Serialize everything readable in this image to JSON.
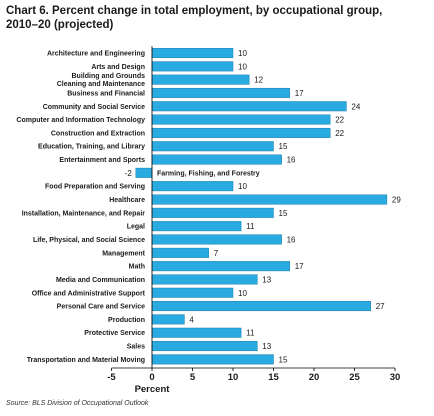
{
  "title_line1": "Chart 6. Percent change in total employment, by occupational group,",
  "title_line2": "2010–20 (projected)",
  "source": "Source: BLS Division of Occupational Outlook",
  "colors": {
    "bar": "#29abe2",
    "bar_stroke": "#1b7fb0",
    "text": "#1a1a1a",
    "axis": "#000000"
  },
  "chart_data": {
    "type": "bar",
    "orientation": "horizontal",
    "title": "Chart 6. Percent change in total employment, by occupational group, 2010–20 (projected)",
    "xlabel": "Percent",
    "ylabel": "",
    "xlim": [
      -5,
      30
    ],
    "xticks": [
      -5,
      0,
      5,
      10,
      15,
      20,
      25,
      30
    ],
    "grid": false,
    "categories": [
      "Architecture and Engineering",
      "Arts and Design",
      "Building and Grounds Cleaning and Maintenance",
      "Business and Financial",
      "Community and Social Service",
      "Computer and Information Technology",
      "Construction and Extraction",
      "Education, Training, and Library",
      "Entertainment and Sports",
      "Farming, Fishing, and Forestry",
      "Food Preparation and Serving",
      "Healthcare",
      "Installation, Maintenance, and Repair",
      "Legal",
      "Life, Physical, and Social Science",
      "Management",
      "Math",
      "Media and Communication",
      "Office and Administrative Support",
      "Personal Care and Service",
      "Production",
      "Protective Service",
      "Sales",
      "Transportation and Material Moving"
    ],
    "category_lines": [
      [
        "Architecture and Engineering"
      ],
      [
        "Arts and Design"
      ],
      [
        "Building and Grounds",
        "Cleaning and Maintenance"
      ],
      [
        "Business and Financial"
      ],
      [
        "Community and Social Service"
      ],
      [
        "Computer and Information Technology"
      ],
      [
        "Construction and Extraction"
      ],
      [
        "Education, Training, and Library"
      ],
      [
        "Entertainment and Sports"
      ],
      [],
      [
        "Food Preparation and Serving"
      ],
      [
        "Healthcare"
      ],
      [
        "Installation, Maintenance, and Repair"
      ],
      [
        "Legal"
      ],
      [
        "Life, Physical, and Social Science"
      ],
      [
        "Management"
      ],
      [
        "Math"
      ],
      [
        "Media and Communication"
      ],
      [
        "Office and Administrative Support"
      ],
      [
        "Personal Care and Service"
      ],
      [
        "Production"
      ],
      [
        "Protective Service"
      ],
      [
        "Sales"
      ],
      [
        "Transportation and Material Moving"
      ]
    ],
    "inline_label": "Farming, Fishing, and Forestry",
    "values": [
      10,
      10,
      12,
      17,
      24,
      22,
      22,
      15,
      16,
      -2,
      10,
      29,
      15,
      11,
      16,
      7,
      17,
      13,
      10,
      27,
      4,
      11,
      13,
      15
    ]
  }
}
